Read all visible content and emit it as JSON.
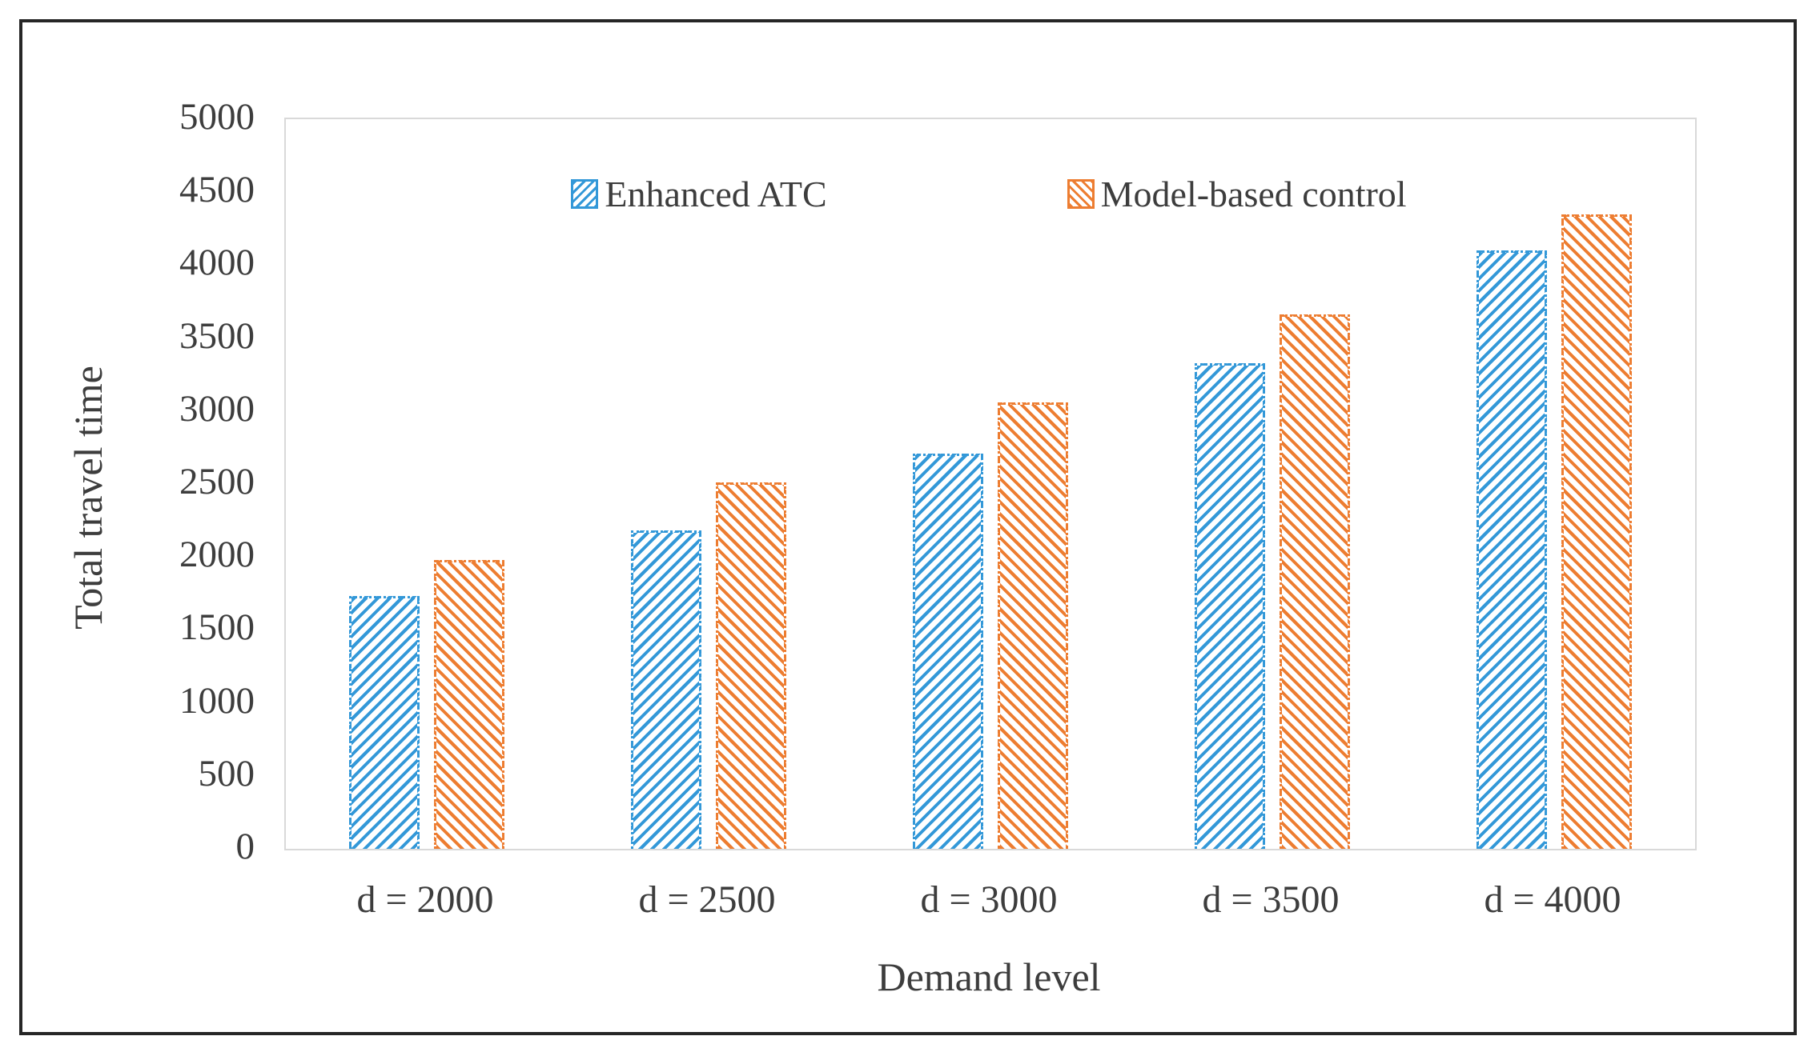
{
  "figure": {
    "frame_border_color": "#262626",
    "plot_border_color": "#d9d9d9",
    "background": "#ffffff",
    "text_color": "#3d3d3d"
  },
  "chart_data": {
    "type": "bar",
    "title": "",
    "categories": [
      "d = 2000",
      "d = 2500",
      "d = 3000",
      "d = 3500",
      "d = 4000"
    ],
    "series": [
      {
        "name": "Enhanced ATC",
        "color": "#3398d8",
        "hatch": "/",
        "values": [
          1730,
          2180,
          2710,
          3330,
          4100
        ]
      },
      {
        "name": "Model-based control",
        "color": "#ed7d31",
        "hatch": "\\",
        "values": [
          1980,
          2510,
          3060,
          3660,
          4350
        ]
      }
    ],
    "xlabel": "Demand level",
    "ylabel": "Total travel time",
    "ylim": [
      0,
      5000
    ],
    "ytick_step": 500,
    "yticks": [
      0,
      500,
      1000,
      1500,
      2000,
      2500,
      3000,
      3500,
      4000,
      4500,
      5000
    ],
    "grid": false,
    "legend_position": "top-center-inside"
  }
}
